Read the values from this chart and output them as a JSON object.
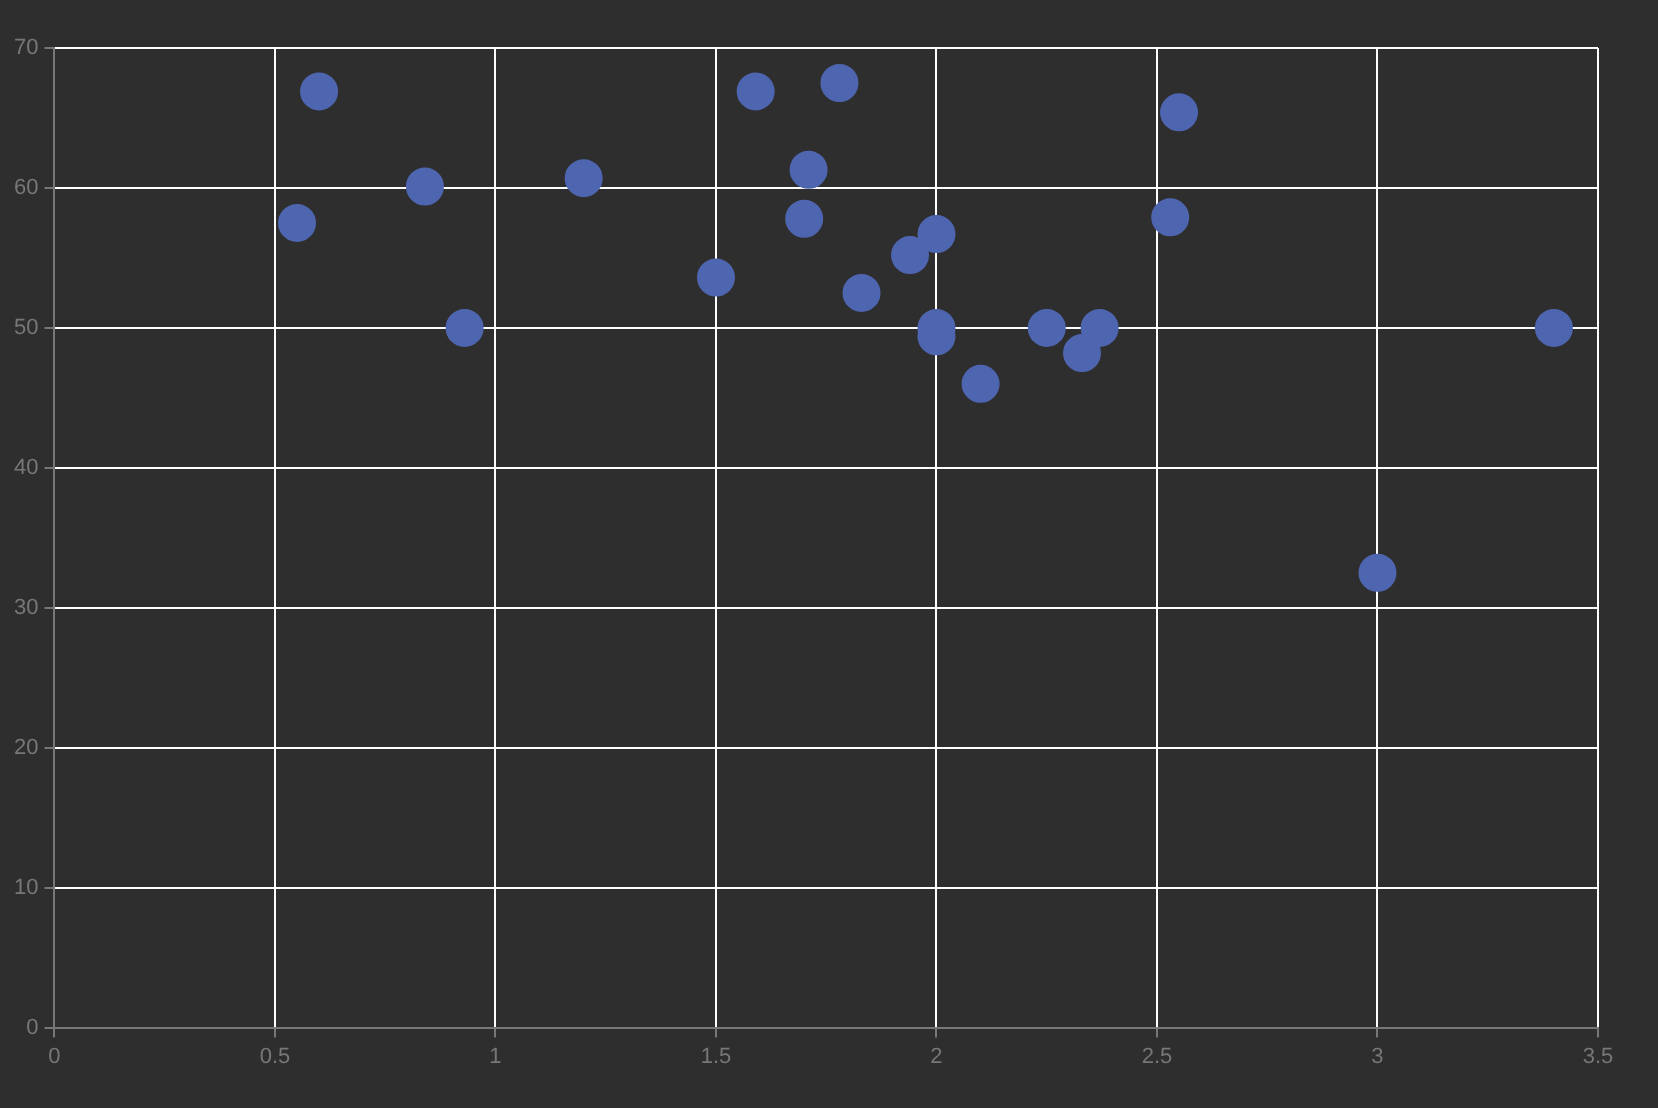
{
  "chart_data": {
    "type": "scatter",
    "x": [
      0.55,
      0.6,
      0.84,
      0.93,
      1.2,
      1.5,
      1.59,
      1.71,
      1.7,
      1.78,
      1.83,
      1.94,
      2.0,
      2.0,
      2.0,
      2.1,
      2.25,
      2.33,
      2.37,
      2.53,
      2.55,
      3.0,
      3.4
    ],
    "values": [
      57.5,
      66.9,
      60.1,
      50,
      60.7,
      53.6,
      66.9,
      61.3,
      57.8,
      67.5,
      52.5,
      55.2,
      56.7,
      50,
      49.4,
      46,
      50,
      48.2,
      50,
      57.9,
      65.4,
      32.5,
      50
    ],
    "color": "#4e65b0",
    "marker": "circle",
    "xlim": [
      0,
      3.5
    ],
    "ylim": [
      0,
      70
    ],
    "xticks": [
      0,
      0.5,
      1,
      1.5,
      2,
      2.5,
      3,
      3.5
    ],
    "yticks": [
      0,
      10,
      20,
      30,
      40,
      50,
      60,
      70
    ],
    "grid": true
  }
}
